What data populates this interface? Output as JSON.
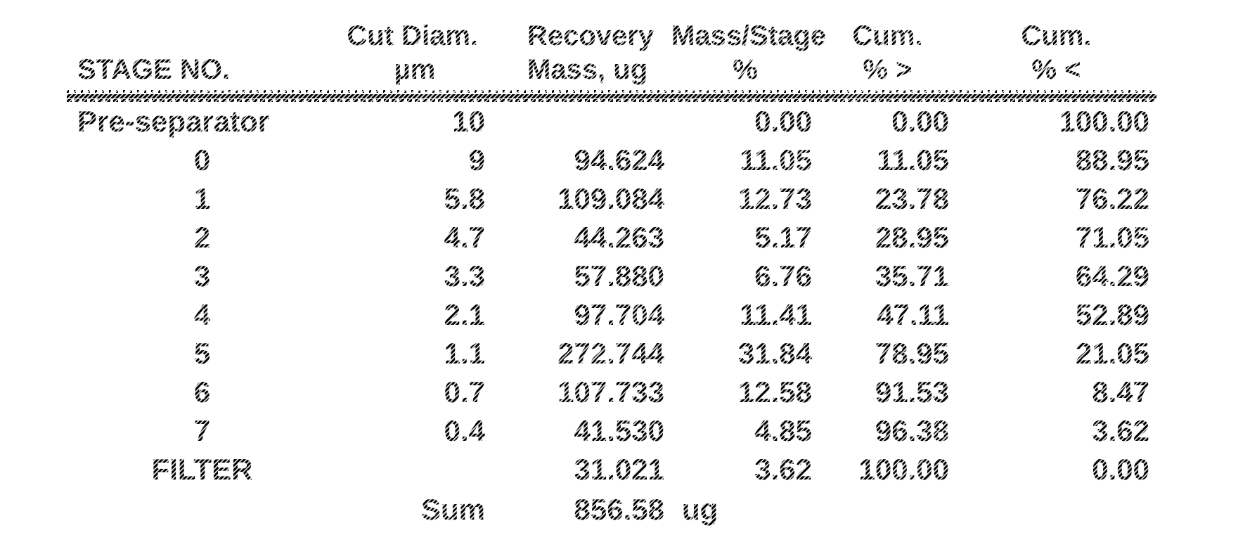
{
  "table": {
    "header_row1": [
      "",
      "Cut Diam.",
      "Recovery",
      "Mass/Stage",
      "Cum.",
      "Cum."
    ],
    "header_row2": [
      "STAGE NO.",
      "µm",
      "Mass, ug",
      "%",
      "% >",
      "% <"
    ],
    "rows": [
      {
        "stage": "Pre-separator",
        "cut_diam": "10",
        "mass": "",
        "mass_pct": "0.00",
        "cum_gt": "0.00",
        "cum_lt": "100.00"
      },
      {
        "stage": "0",
        "cut_diam": "9",
        "mass": "94.624",
        "mass_pct": "11.05",
        "cum_gt": "11.05",
        "cum_lt": "88.95"
      },
      {
        "stage": "1",
        "cut_diam": "5.8",
        "mass": "109.084",
        "mass_pct": "12.73",
        "cum_gt": "23.78",
        "cum_lt": "76.22"
      },
      {
        "stage": "2",
        "cut_diam": "4.7",
        "mass": "44.263",
        "mass_pct": "5.17",
        "cum_gt": "28.95",
        "cum_lt": "71.05"
      },
      {
        "stage": "3",
        "cut_diam": "3.3",
        "mass": "57.880",
        "mass_pct": "6.76",
        "cum_gt": "35.71",
        "cum_lt": "64.29"
      },
      {
        "stage": "4",
        "cut_diam": "2.1",
        "mass": "97.704",
        "mass_pct": "11.41",
        "cum_gt": "47.11",
        "cum_lt": "52.89"
      },
      {
        "stage": "5",
        "cut_diam": "1.1",
        "mass": "272.744",
        "mass_pct": "31.84",
        "cum_gt": "78.95",
        "cum_lt": "21.05"
      },
      {
        "stage": "6",
        "cut_diam": "0.7",
        "mass": "107.733",
        "mass_pct": "12.58",
        "cum_gt": "91.53",
        "cum_lt": "8.47"
      },
      {
        "stage": "7",
        "cut_diam": "0.4",
        "mass": "41.530",
        "mass_pct": "4.85",
        "cum_gt": "96.38",
        "cum_lt": "3.62"
      },
      {
        "stage": "FILTER",
        "cut_diam": "",
        "mass": "31.021",
        "mass_pct": "3.62",
        "cum_gt": "100.00",
        "cum_lt": "0.00"
      }
    ],
    "sum_row": {
      "label": "Sum",
      "value": "856.58",
      "unit": "ug"
    },
    "ink_color": "#000000",
    "paper_color": "#ffffff"
  }
}
